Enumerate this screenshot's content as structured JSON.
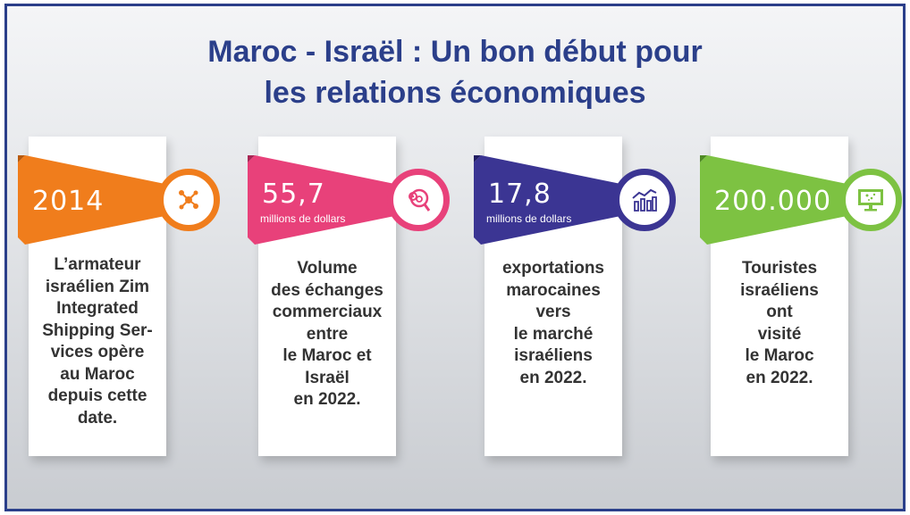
{
  "title": {
    "line1": "Maroc - Israël : Un bon début pour",
    "line2": "les relations économiques"
  },
  "cards": [
    {
      "value": "2014",
      "unit": "",
      "text": [
        "L’armateur",
        "israélien Zim",
        "Integrated",
        "Shipping Ser-",
        "vices opère",
        "au Maroc",
        "depuis cette",
        "date."
      ],
      "color": "#f07d1c",
      "icon": "network-nodes-icon"
    },
    {
      "value": "55,7",
      "unit": "millions de dollars",
      "text": [
        "Volume",
        "des échanges",
        "commerciaux",
        "entre",
        "le Maroc et",
        "Israël",
        "en 2022."
      ],
      "color": "#e8417a",
      "icon": "gear-magnifier-icon"
    },
    {
      "value": "17,8",
      "unit": "millions de dollars",
      "text": [
        "exportations",
        "marocaines",
        "vers",
        "le marché",
        "israéliens",
        "en 2022."
      ],
      "color": "#3b3593",
      "icon": "bar-chart-icon"
    },
    {
      "value": "200.000",
      "unit": "",
      "text": [
        "Touristes",
        "israéliens",
        "ont",
        "visité",
        "le Maroc",
        "en 2022."
      ],
      "color": "#7dc242",
      "icon": "monitor-icon"
    }
  ]
}
